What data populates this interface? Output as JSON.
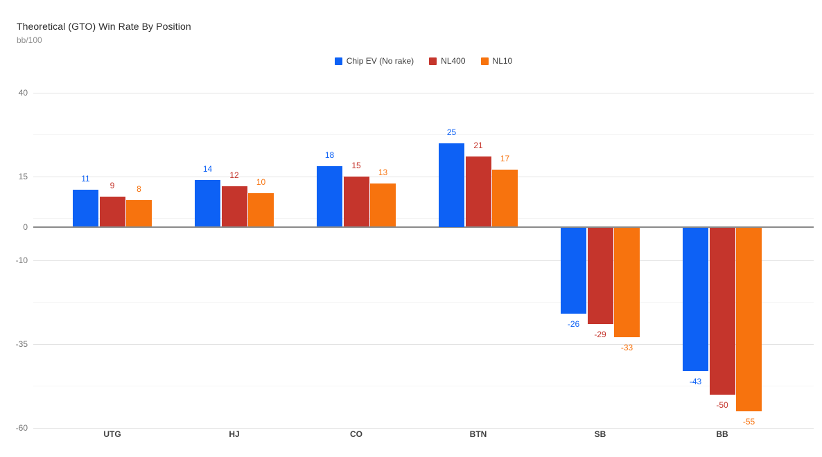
{
  "header": {
    "title": "Theoretical (GTO) Win Rate By Position",
    "subtitle": "bb/100"
  },
  "chart_data": {
    "type": "bar",
    "title": "Theoretical (GTO) Win Rate By Position",
    "ylabel": "bb/100",
    "xlabel": "",
    "categories": [
      "UTG",
      "HJ",
      "CO",
      "BTN",
      "SB",
      "BB"
    ],
    "series": [
      {
        "name": "Chip EV (No rake)",
        "color": "#0d61f5",
        "values": [
          11,
          14,
          18,
          25,
          -26,
          -43
        ]
      },
      {
        "name": "NL400",
        "color": "#c5352c",
        "values": [
          9,
          12,
          15,
          21,
          -29,
          -50
        ]
      },
      {
        "name": "NL10",
        "color": "#f7730e",
        "values": [
          8,
          10,
          13,
          17,
          -33,
          -55
        ]
      }
    ],
    "value_labels": true,
    "grid": true,
    "legend_position": "top-center",
    "ylim": [
      -60,
      40
    ],
    "y_major_ticks": [
      40,
      15,
      -10,
      -35,
      -60
    ],
    "y_minor_ticks": [
      27.5,
      2.5,
      -22.5,
      -47.5
    ],
    "y_zero_tick": 0
  },
  "colors": {
    "grid_major": "#e3e3e3",
    "grid_minor": "#f4f4f4",
    "zero_line": "#8a8a8a",
    "y_tick_label": "#757575",
    "category_label": "#3f3f3f",
    "title": "#2b2b2b",
    "subtitle": "#8f8f8f",
    "legend_text": "#3c3c3c",
    "background": "#ffffff"
  }
}
